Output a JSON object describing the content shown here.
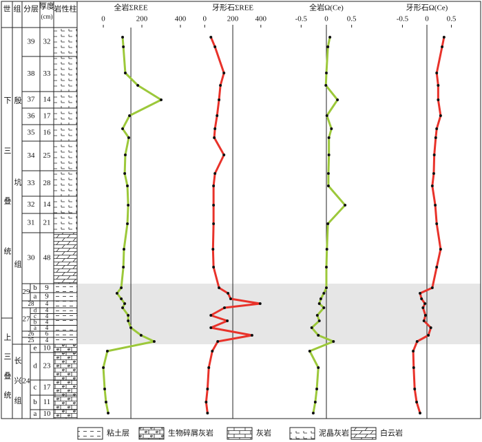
{
  "table": {
    "headers": [
      "世",
      "组",
      "分层",
      "厚度",
      "(cm)",
      "岩性柱"
    ],
    "epochs": [
      "下三叠统",
      "上三叠统"
    ],
    "formations": [
      "殷坑组",
      "长兴组"
    ],
    "layers": [
      {
        "layer": "39",
        "thickness": 32
      },
      {
        "layer": "38",
        "thickness": 33
      },
      {
        "layer": "37",
        "thickness": 14
      },
      {
        "layer": "36",
        "thickness": 17
      },
      {
        "layer": "35",
        "thickness": 16
      },
      {
        "layer": "34",
        "thickness": 25
      },
      {
        "layer": "33",
        "thickness": 28
      },
      {
        "layer": "32",
        "thickness": 14
      },
      {
        "layer": "31",
        "thickness": 21
      },
      {
        "layer": "30",
        "thickness": 48
      },
      {
        "layer": "29",
        "subs": [
          {
            "sub": "b",
            "thickness": 9
          },
          {
            "sub": "a",
            "thickness": 9
          }
        ]
      },
      {
        "layer": "28",
        "thickness": 4
      },
      {
        "layer": "27",
        "subs": [
          {
            "sub": "d",
            "thickness": 4
          },
          {
            "sub": "c",
            "thickness": 4
          },
          {
            "sub": "b",
            "thickness": 4
          },
          {
            "sub": "a",
            "thickness": 4
          }
        ]
      },
      {
        "layer": "26",
        "thickness": 6
      },
      {
        "layer": "25",
        "thickness": 4
      },
      {
        "layer": "24",
        "subs": [
          {
            "sub": "e",
            "thickness": 10
          },
          {
            "sub": "d",
            "thickness": 23
          },
          {
            "sub": "c",
            "thickness": 17
          },
          {
            "sub": "b",
            "thickness": 11
          },
          {
            "sub": "a",
            "thickness": 10
          }
        ]
      }
    ]
  },
  "chart_data": [
    {
      "type": "line",
      "title": "全岩ΣREE",
      "xlim": [
        -136,
        425
      ],
      "xticks": [
        0,
        200,
        400
      ],
      "reference": 143,
      "color": "#9cc83a",
      "values": [
        100,
        104,
        114,
        179,
        300,
        136,
        100,
        132,
        114,
        111,
        125,
        129,
        125,
        107,
        104,
        93,
        71,
        93,
        111,
        100,
        129,
        129,
        143,
        196,
        264,
        21,
        0,
        7,
        14,
        25
      ]
    },
    {
      "type": "line",
      "title": "牙形石ΣREE",
      "xlim": [
        -80,
        450
      ],
      "xticks": [
        0,
        200,
        400
      ],
      "reference": 200,
      "color": "#e8322a",
      "values": [
        44,
        73,
        137,
        112,
        102,
        88,
        73,
        68,
        137,
        73,
        63,
        63,
        63,
        59,
        63,
        102,
        166,
        185,
        395,
        141,
        44,
        161,
        44,
        337,
        93,
        54,
        29,
        20,
        10,
        20
      ]
    },
    {
      "type": "line",
      "title": "全岩Ω(Ce)",
      "xlim": [
        -0.9,
        0.9
      ],
      "xticks": [
        -0.5,
        0,
        0.5
      ],
      "reference": 0,
      "color": "#9cc83a",
      "values": [
        0.07,
        0.03,
        0,
        -0.01,
        0.22,
        0.01,
        0.1,
        0.05,
        0.05,
        0.04,
        0.04,
        0.37,
        0.03,
        0.01,
        0,
        0,
        -0.05,
        -0.11,
        -0.14,
        -0.05,
        -0.18,
        -0.14,
        -0.29,
        -0.16,
        0.14,
        -0.33,
        -0.16,
        -0.19,
        -0.22,
        -0.26
      ]
    },
    {
      "type": "line",
      "title": "牙形石Ω(Ce)",
      "xlim": [
        -0.9,
        0.9
      ],
      "xticks": [
        -0.5,
        0,
        0.5
      ],
      "reference": 0,
      "color": "#e8322a",
      "values": [
        0.35,
        0.31,
        0.2,
        0.23,
        0.23,
        0.28,
        0.2,
        0.18,
        0.15,
        0.14,
        0.11,
        0.17,
        0.2,
        0.28,
        0.2,
        0.11,
        -0.14,
        -0.11,
        -0.04,
        -0.08,
        -0.03,
        -0.06,
        0.08,
        0.03,
        -0.2,
        -0.28,
        -0.27,
        -0.25,
        -0.21,
        -0.14
      ]
    }
  ],
  "legend": [
    "粘土层",
    "生物碎屑灰岩",
    "灰岩",
    "泥晶灰岩",
    "白云岩"
  ]
}
